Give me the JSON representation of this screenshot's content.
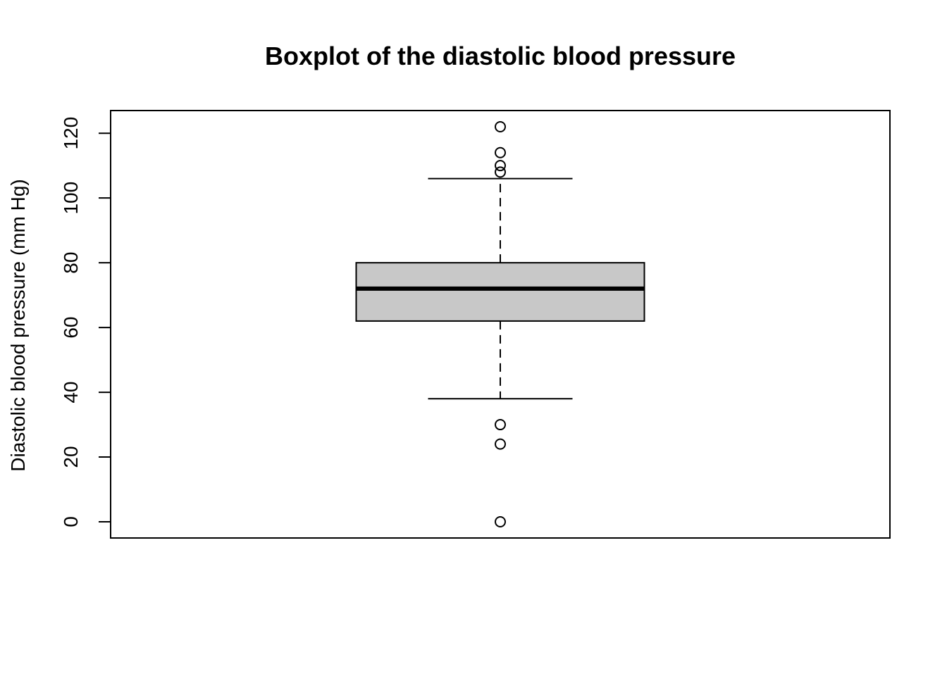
{
  "chart_data": {
    "type": "box",
    "title": "Boxplot of the diastolic blood pressure",
    "xlabel": "",
    "ylabel": "Diastolic blood pressure (mm Hg)",
    "ylim": [
      -5,
      127
    ],
    "y_ticks": [
      0,
      20,
      40,
      60,
      80,
      100,
      120
    ],
    "grid": false,
    "box": {
      "q1": 62,
      "median": 72,
      "q3": 80,
      "whisker_low": 38,
      "whisker_high": 106
    },
    "outliers": [
      122,
      114,
      110,
      108,
      30,
      24,
      0
    ],
    "colors": {
      "box_fill": "#c8c8c8",
      "stroke": "#000000",
      "background": "#ffffff"
    }
  }
}
